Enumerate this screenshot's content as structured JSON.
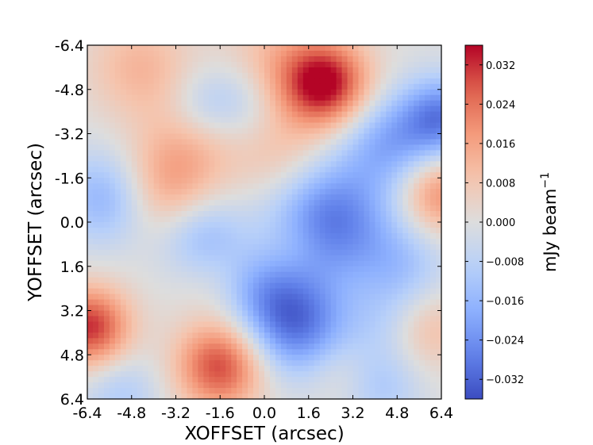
{
  "chart_data": {
    "type": "heatmap",
    "title": "",
    "xlabel": "XOFFSET (arcsec)",
    "ylabel": "YOFFSET (arcsec)",
    "colorbar_label": "mJy beam",
    "colorbar_label_superscript": "−1",
    "colormap": "coolwarm",
    "xlim": [
      -6.4,
      6.4
    ],
    "ylim": [
      -6.4,
      6.4
    ],
    "y_inverted": true,
    "x_ticks": [
      -6.4,
      -4.8,
      -3.2,
      -1.6,
      0.0,
      1.6,
      3.2,
      4.8,
      6.4
    ],
    "x_tick_labels": [
      "-6.4",
      "-4.8",
      "-3.2",
      "-1.6",
      "0.0",
      "1.6",
      "3.2",
      "4.8",
      "6.4"
    ],
    "y_ticks": [
      -6.4,
      -4.8,
      -3.2,
      -1.6,
      0.0,
      1.6,
      3.2,
      4.8,
      6.4
    ],
    "y_tick_labels": [
      "-6.4",
      "-4.8",
      "-3.2",
      "-1.6",
      "0.0",
      "1.6",
      "3.2",
      "4.8",
      "6.4"
    ],
    "color_range": [
      -0.036,
      0.036
    ],
    "colorbar_ticks": [
      -0.032,
      -0.024,
      -0.016,
      -0.008,
      0.0,
      0.008,
      0.016,
      0.024,
      0.032
    ],
    "colorbar_tick_labels": [
      "−0.032",
      "−0.024",
      "−0.016",
      "−0.008",
      "0.000",
      "0.008",
      "0.016",
      "0.024",
      "0.032"
    ],
    "grid_resolution": [
      64,
      64
    ],
    "features": [
      {
        "x": 2.2,
        "y": -5.0,
        "value": 0.036,
        "width": 1.1
      },
      {
        "x": -1.6,
        "y": 5.2,
        "value": 0.03,
        "width": 1.1
      },
      {
        "x": -6.3,
        "y": 3.8,
        "value": 0.032,
        "width": 1.0
      },
      {
        "x": -3.6,
        "y": -1.3,
        "value": 0.016,
        "width": 1.3
      },
      {
        "x": -4.5,
        "y": -5.6,
        "value": 0.012,
        "width": 1.3
      },
      {
        "x": -2.4,
        "y": -3.1,
        "value": 0.009,
        "width": 1.3
      },
      {
        "x": 0.6,
        "y": -2.4,
        "value": 0.009,
        "width": 1.2
      },
      {
        "x": 0.3,
        "y": -5.6,
        "value": 0.012,
        "width": 1.4
      },
      {
        "x": 6.3,
        "y": -1.0,
        "value": 0.02,
        "width": 1.0
      },
      {
        "x": 6.0,
        "y": 3.9,
        "value": 0.01,
        "width": 1.0
      },
      {
        "x": -1.9,
        "y": 1.8,
        "value": 0.004,
        "width": 1.0
      },
      {
        "x": 2.7,
        "y": 5.4,
        "value": 0.004,
        "width": 0.8
      },
      {
        "x": 1.2,
        "y": 0.8,
        "value": 0.003,
        "width": 0.8
      },
      {
        "x": 2.4,
        "y": -0.1,
        "value": -0.028,
        "width": 1.5
      },
      {
        "x": 1.1,
        "y": 3.6,
        "value": -0.03,
        "width": 1.3
      },
      {
        "x": -2.2,
        "y": 0.6,
        "value": -0.016,
        "width": 1.1
      },
      {
        "x": -5.7,
        "y": -0.9,
        "value": -0.018,
        "width": 1.2
      },
      {
        "x": -0.9,
        "y": -4.4,
        "value": -0.012,
        "width": 1.1
      },
      {
        "x": -2.3,
        "y": -4.2,
        "value": -0.008,
        "width": 0.9
      },
      {
        "x": 4.5,
        "y": -2.9,
        "value": -0.018,
        "width": 1.2
      },
      {
        "x": 6.4,
        "y": -3.8,
        "value": -0.026,
        "width": 1.0
      },
      {
        "x": 4.9,
        "y": 1.6,
        "value": -0.012,
        "width": 1.2
      },
      {
        "x": 4.3,
        "y": 6.0,
        "value": -0.01,
        "width": 1.0
      },
      {
        "x": -5.2,
        "y": 6.2,
        "value": -0.01,
        "width": 1.0
      },
      {
        "x": -0.2,
        "y": 2.4,
        "value": -0.01,
        "width": 1.0
      },
      {
        "x": 4.2,
        "y": 3.8,
        "value": -0.006,
        "width": 1.0
      }
    ]
  }
}
